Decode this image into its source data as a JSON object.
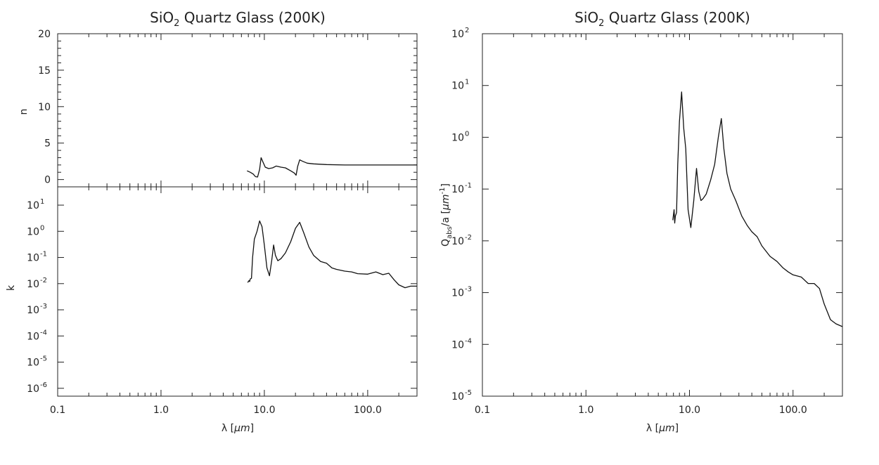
{
  "chart_data": [
    {
      "type": "line",
      "title_main": "SiO",
      "title_sub": "2",
      "title_rest": " Quartz Glass (200K)",
      "xscale": "log",
      "xlim": [
        0.1,
        300
      ],
      "xticks": [
        "0.1",
        "1.0",
        "10.0",
        "100.0"
      ],
      "xlabel_sym": "λ",
      "xlabel_unit_open": " [",
      "xlabel_unit": "μm",
      "xlabel_unit_close": "]",
      "panels": [
        {
          "ylabel": "n",
          "yscale": "linear",
          "ylim": [
            -1,
            20
          ],
          "yticks": [
            "0",
            "5",
            "10",
            "15",
            "20"
          ],
          "x": [
            6.8,
            7.3,
            7.8,
            8.2,
            8.6,
            9.0,
            9.3,
            9.7,
            10.2,
            11.0,
            12.0,
            13.0,
            14.5,
            16.0,
            18.0,
            19.5,
            20.3,
            21.0,
            22.0,
            23.5,
            26,
            30,
            40,
            60,
            100,
            200,
            300
          ],
          "y": [
            1.2,
            1.0,
            0.75,
            0.4,
            0.35,
            1.4,
            3.0,
            2.4,
            1.7,
            1.5,
            1.6,
            1.85,
            1.7,
            1.6,
            1.2,
            0.9,
            0.6,
            1.8,
            2.7,
            2.5,
            2.25,
            2.15,
            2.05,
            2.0,
            2.0,
            2.0,
            2.0
          ]
        },
        {
          "ylabel": "k",
          "yscale": "log",
          "ylim": [
            5e-07,
            50
          ],
          "yticks": [
            {
              "base": "10",
              "exp": "-6"
            },
            {
              "base": "10",
              "exp": "-5"
            },
            {
              "base": "10",
              "exp": "-4"
            },
            {
              "base": "10",
              "exp": "-3"
            },
            {
              "base": "10",
              "exp": "-2"
            },
            {
              "base": "10",
              "exp": "-1"
            },
            {
              "base": "10",
              "exp": "0"
            },
            {
              "base": "10",
              "exp": "1"
            }
          ],
          "x": [
            6.9,
            7.1,
            7.2,
            7.3,
            7.5,
            7.7,
            8.0,
            8.5,
            9.0,
            9.5,
            10.0,
            10.6,
            11.2,
            11.8,
            12.3,
            12.8,
            13.5,
            14.5,
            16,
            18,
            20,
            22,
            24,
            27,
            30,
            35,
            40,
            45,
            50,
            60,
            70,
            80,
            100,
            120,
            140,
            160,
            180,
            200,
            230,
            260,
            300
          ],
          "y": [
            0.011,
            0.013,
            0.012,
            0.015,
            0.016,
            0.1,
            0.5,
            1.0,
            2.5,
            1.5,
            0.3,
            0.04,
            0.02,
            0.08,
            0.3,
            0.12,
            0.075,
            0.09,
            0.15,
            0.4,
            1.3,
            2.2,
            0.9,
            0.25,
            0.12,
            0.07,
            0.06,
            0.04,
            0.035,
            0.03,
            0.028,
            0.024,
            0.023,
            0.028,
            0.022,
            0.025,
            0.014,
            0.009,
            0.007,
            0.008,
            0.008
          ]
        }
      ]
    },
    {
      "type": "line",
      "title_main": "SiO",
      "title_sub": "2",
      "title_rest": " Quartz Glass (200K)",
      "xscale": "log",
      "xlim": [
        0.1,
        300
      ],
      "xticks": [
        "0.1",
        "1.0",
        "10.0",
        "100.0"
      ],
      "xlabel_sym": "λ",
      "xlabel_unit_open": " [",
      "xlabel_unit": "μm",
      "xlabel_unit_close": "]",
      "ylabel_main": "Q",
      "ylabel_sub": "abs",
      "ylabel_rest": "/a [",
      "ylabel_unit": "μm",
      "ylabel_exp": "-1",
      "ylabel_close": "]",
      "yscale": "log",
      "ylim": [
        1e-05,
        100
      ],
      "yticks": [
        {
          "base": "10",
          "exp": "-5"
        },
        {
          "base": "10",
          "exp": "-4"
        },
        {
          "base": "10",
          "exp": "-3"
        },
        {
          "base": "10",
          "exp": "-2"
        },
        {
          "base": "10",
          "exp": "-1"
        },
        {
          "base": "10",
          "exp": "0"
        },
        {
          "base": "10",
          "exp": "1"
        },
        {
          "base": "10",
          "exp": "2"
        }
      ],
      "x": [
        6.9,
        7.1,
        7.2,
        7.3,
        7.5,
        7.7,
        8.0,
        8.4,
        8.8,
        9.2,
        9.7,
        10.3,
        11.0,
        11.7,
        12.3,
        12.9,
        13.5,
        14.5,
        16,
        17.5,
        19,
        20.3,
        21.5,
        23,
        25,
        28,
        32,
        36,
        40,
        45,
        50,
        60,
        70,
        80,
        90,
        100,
        120,
        140,
        160,
        180,
        200,
        230,
        260,
        300
      ],
      "y": [
        0.025,
        0.04,
        0.022,
        0.03,
        0.035,
        0.3,
        2.0,
        7.5,
        1.5,
        0.6,
        0.04,
        0.018,
        0.06,
        0.25,
        0.09,
        0.06,
        0.065,
        0.08,
        0.15,
        0.3,
        1.0,
        2.3,
        0.6,
        0.2,
        0.1,
        0.06,
        0.03,
        0.02,
        0.015,
        0.012,
        0.008,
        0.005,
        0.004,
        0.003,
        0.0025,
        0.0022,
        0.002,
        0.0015,
        0.0015,
        0.0012,
        0.0006,
        0.0003,
        0.00025,
        0.00022
      ]
    }
  ]
}
